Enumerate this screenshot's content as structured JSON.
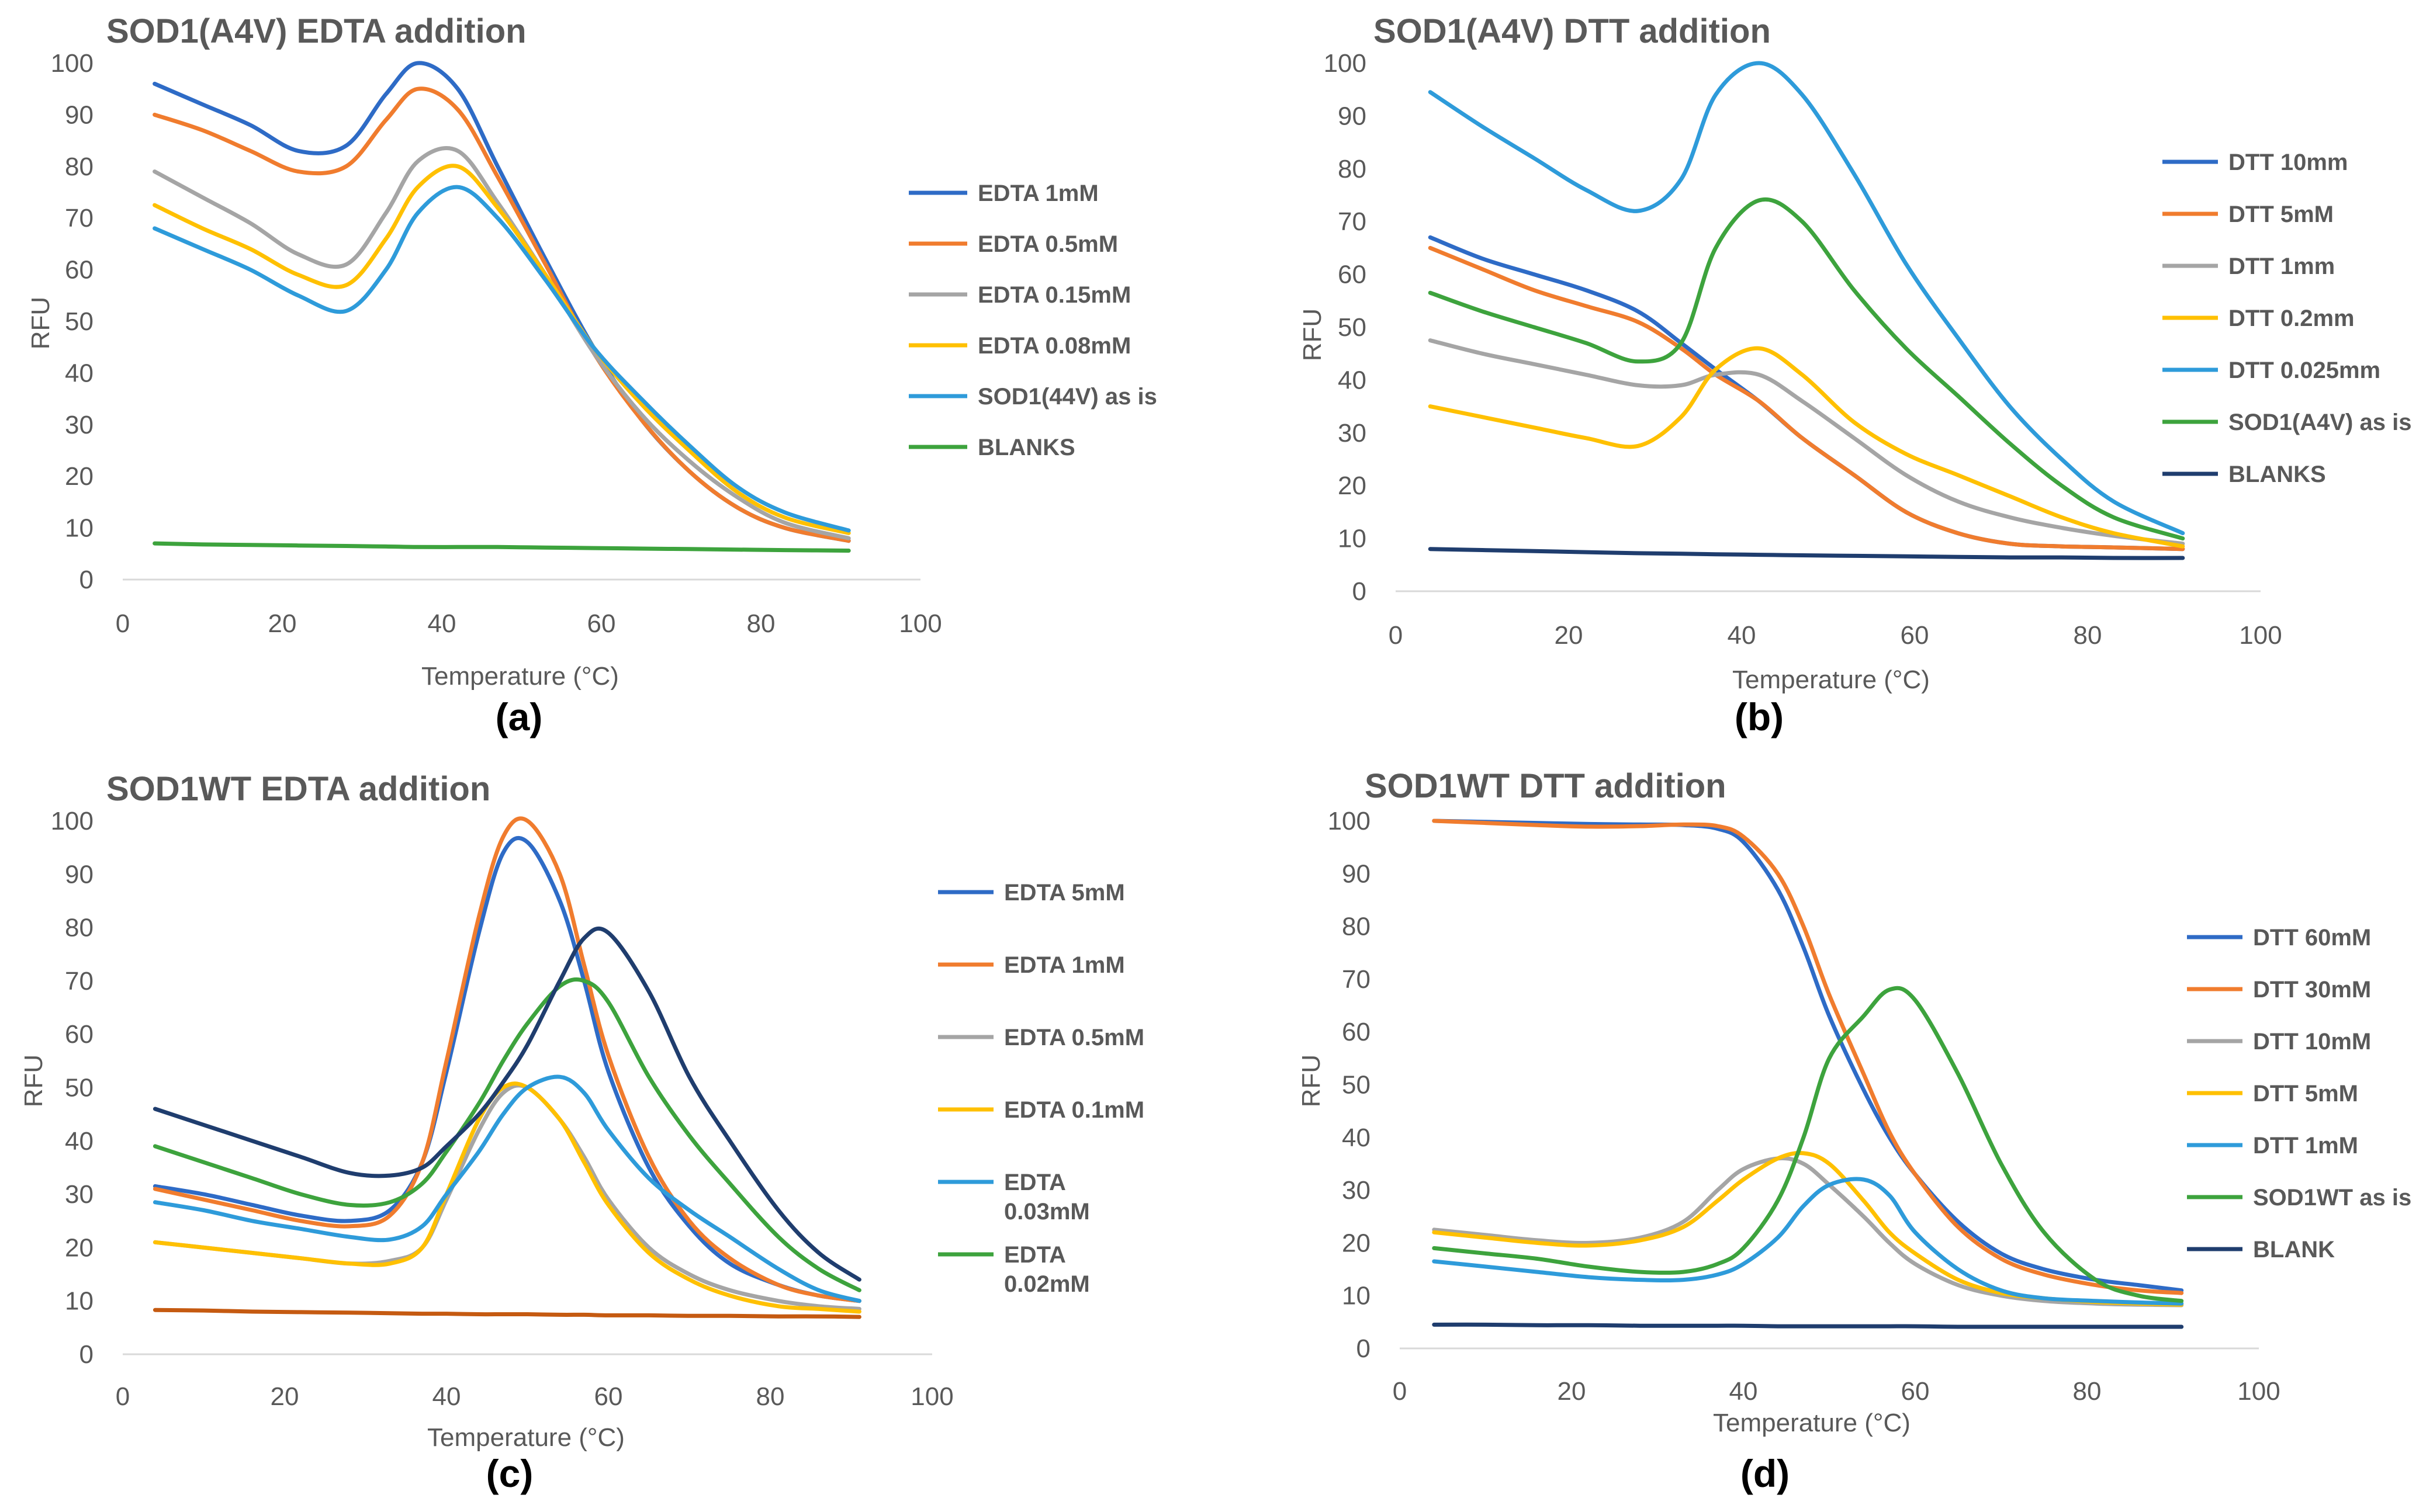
{
  "chart_data": [
    {
      "type": "line",
      "title": "SOD1(A4V) EDTA addition",
      "panel_label": "(a)",
      "xlabel": "Temperature (°C)",
      "ylabel": "RFU",
      "xlim": [
        0,
        100
      ],
      "ylim": [
        0,
        100
      ],
      "xticks": [
        0,
        20,
        40,
        60,
        80,
        100
      ],
      "yticks": [
        0,
        10,
        20,
        30,
        40,
        50,
        60,
        70,
        80,
        90,
        100
      ],
      "legend_position": "right",
      "x": [
        4,
        10,
        16,
        22,
        28,
        33,
        37,
        42,
        47,
        53,
        59,
        65,
        71,
        77,
        83,
        91
      ],
      "series": [
        {
          "name": "EDTA 1mM",
          "color": "#2E6BC6",
          "values": [
            96,
            92,
            88,
            83,
            84,
            94,
            100,
            95,
            80,
            62,
            45,
            31,
            21,
            14,
            10,
            7.5
          ]
        },
        {
          "name": "EDTA 0.5mM",
          "color": "#F07C2E",
          "values": [
            90,
            87,
            83,
            79,
            80,
            89,
            95,
            91,
            78,
            61,
            44,
            31,
            21,
            14,
            10,
            7.5
          ]
        },
        {
          "name": "EDTA 0.15mM",
          "color": "#A5A5A5",
          "values": [
            79,
            74,
            69,
            63,
            61,
            71,
            81,
            83,
            73,
            59,
            44,
            32,
            23,
            16,
            11,
            8
          ]
        },
        {
          "name": "EDTA 0.08mM",
          "color": "#FFC000",
          "values": [
            72.5,
            68,
            64,
            59,
            57,
            66,
            76,
            80,
            72,
            59,
            45,
            34,
            25,
            17,
            12,
            9
          ]
        },
        {
          "name": "SOD1(44V) as is",
          "color": "#2E9BDA",
          "values": [
            68,
            64,
            60,
            55,
            52,
            60,
            71,
            76,
            70,
            58,
            45,
            35,
            26,
            18,
            13,
            9.5
          ]
        },
        {
          "name": "BLANKS",
          "color": "#3DA33D",
          "values": [
            7,
            6.8,
            6.7,
            6.6,
            6.5,
            6.4,
            6.3,
            6.3,
            6.3,
            6.2,
            6.1,
            6.0,
            5.9,
            5.8,
            5.7,
            5.6
          ]
        }
      ]
    },
    {
      "type": "line",
      "title": "SOD1(A4V)  DTT addition",
      "panel_label": "(b)",
      "xlabel": "Temperature  (°C)",
      "ylabel": "RFU",
      "xlim": [
        0,
        100
      ],
      "ylim": [
        0,
        100
      ],
      "xticks": [
        0,
        20,
        40,
        60,
        80,
        100
      ],
      "yticks": [
        0,
        10,
        20,
        30,
        40,
        50,
        60,
        70,
        80,
        90,
        100
      ],
      "legend_position": "right",
      "x": [
        4,
        10,
        16,
        22,
        28,
        33,
        37,
        42,
        47,
        53,
        59,
        65,
        71,
        77,
        83,
        91
      ],
      "series": [
        {
          "name": "DTT 10mm",
          "color": "#2E6BC6",
          "values": [
            67,
            63,
            60,
            57,
            53,
            47,
            42,
            36,
            29,
            22,
            15,
            11,
            9,
            8.5,
            8.3,
            8
          ]
        },
        {
          "name": "DTT 5mM",
          "color": "#F07C2E",
          "values": [
            65,
            61,
            57,
            54,
            51,
            46,
            41,
            36,
            29,
            22,
            15,
            11,
            9,
            8.5,
            8.3,
            8
          ]
        },
        {
          "name": "DTT 1mm",
          "color": "#A5A5A5",
          "values": [
            47.5,
            45,
            43,
            41,
            39,
            39,
            41,
            41,
            36,
            29,
            22,
            17,
            14,
            12,
            10.5,
            9
          ]
        },
        {
          "name": "DTT 0.2mm",
          "color": "#FFC000",
          "values": [
            35,
            33,
            31,
            29,
            27.5,
            33,
            42,
            46,
            41,
            32,
            26,
            22,
            18,
            14,
            11,
            8.5
          ]
        },
        {
          "name": "DTT 0.025mm",
          "color": "#2E9BDA",
          "values": [
            94.5,
            88,
            82,
            76,
            72,
            78,
            94,
            100,
            94,
            79,
            62,
            48,
            35,
            25,
            17,
            11
          ]
        },
        {
          "name": "SOD1(A4V) as is",
          "color": "#3DA33D",
          "values": [
            56.5,
            53,
            50,
            47,
            43.5,
            47,
            65,
            74,
            70,
            57,
            46,
            37,
            28,
            20,
            14,
            10
          ]
        },
        {
          "name": "BLANKS",
          "color": "#1F3D6E",
          "values": [
            8,
            7.8,
            7.6,
            7.4,
            7.2,
            7.1,
            7.0,
            6.9,
            6.8,
            6.7,
            6.6,
            6.5,
            6.4,
            6.4,
            6.3,
            6.3
          ]
        }
      ]
    },
    {
      "type": "line",
      "title": "SOD1WT EDTA addition",
      "panel_label": "(c)",
      "xlabel": "Temperature (°C)",
      "ylabel": "RFU",
      "xlim": [
        0,
        100
      ],
      "ylim": [
        0,
        100
      ],
      "xticks": [
        0,
        20,
        40,
        60,
        80,
        100
      ],
      "yticks": [
        0,
        10,
        20,
        30,
        40,
        50,
        60,
        70,
        80,
        90,
        100
      ],
      "legend_position": "right",
      "x": [
        4,
        10,
        16,
        22,
        28,
        33,
        37,
        40,
        44,
        47,
        50,
        54,
        57,
        60,
        65,
        70,
        75,
        81,
        86,
        91
      ],
      "series": [
        {
          "name": "EDTA 5mM",
          "color": "#2E6BC6",
          "values": [
            31.5,
            30,
            28,
            26,
            25,
            27,
            36,
            53,
            79,
            94,
            96,
            85,
            70,
            53,
            35,
            24,
            17,
            13,
            11,
            10
          ]
        },
        {
          "name": "EDTA 1mM",
          "color": "#F07C2E",
          "values": [
            31,
            29,
            27,
            25,
            24,
            26,
            36,
            55,
            82,
            97,
            100,
            90,
            73,
            56,
            37,
            25,
            18,
            13,
            11,
            10
          ]
        },
        {
          "name": "EDTA 0.5mM",
          "color": "#A5A5A5",
          "values": [
            21,
            20,
            19,
            18,
            17,
            17.5,
            20,
            29,
            42,
            49,
            50,
            44,
            37,
            29,
            20,
            15,
            12,
            10,
            9,
            8.5
          ]
        },
        {
          "name": "EDTA 0.1mM",
          "color": "#FFC000",
          "values": [
            21,
            20,
            19,
            18,
            17,
            17,
            20,
            30,
            44,
            50,
            50,
            44,
            36,
            28,
            19,
            14,
            11,
            9,
            8.5,
            8
          ]
        },
        {
          "name": "EDTA 0.03mM",
          "color": "#2E9BDA",
          "values": [
            28.5,
            27,
            25,
            23.5,
            22,
            21.5,
            24,
            30,
            38,
            45,
            50,
            52,
            49,
            42,
            33,
            27,
            22,
            16,
            12,
            10
          ]
        },
        {
          "name": "EDTA 0.02mM",
          "color": "#3DA33D",
          "values": [
            39,
            36,
            33,
            30,
            28,
            28.5,
            32,
            38,
            47,
            55,
            62,
            69,
            70,
            66,
            52,
            41,
            32,
            22,
            16,
            12
          ]
        },
        {
          "name": "",
          "color": "#1F3D6E",
          "values": [
            46,
            43,
            40,
            37,
            34,
            33.5,
            35,
            39,
            45,
            51,
            58,
            70,
            78,
            79,
            68,
            52,
            40,
            27,
            19,
            14
          ]
        },
        {
          "name": "",
          "color": "#C55A11",
          "values": [
            8.3,
            8.2,
            8.0,
            7.9,
            7.8,
            7.7,
            7.6,
            7.6,
            7.5,
            7.5,
            7.5,
            7.4,
            7.4,
            7.3,
            7.3,
            7.2,
            7.2,
            7.1,
            7.1,
            7.0
          ]
        }
      ]
    },
    {
      "type": "line",
      "title": "SOD1WT DTT addition",
      "panel_label": "(d)",
      "xlabel": "Temperature (°C)",
      "ylabel": "RFU",
      "xlim": [
        0,
        100
      ],
      "ylim": [
        0,
        100
      ],
      "xticks": [
        0,
        20,
        40,
        60,
        80,
        100
      ],
      "yticks": [
        0,
        10,
        20,
        30,
        40,
        50,
        60,
        70,
        80,
        90,
        100
      ],
      "legend_position": "right",
      "x": [
        4,
        10,
        16,
        22,
        28,
        33,
        37,
        40,
        44,
        47,
        50,
        54,
        57,
        60,
        65,
        70,
        75,
        81,
        86,
        91
      ],
      "series": [
        {
          "name": "DTT 60mM",
          "color": "#2E6BC6",
          "values": [
            100,
            99.8,
            99.6,
            99.4,
            99.3,
            99.2,
            98.5,
            96,
            87,
            76,
            63,
            49,
            40,
            33,
            24,
            18,
            15,
            13,
            12,
            11
          ]
        },
        {
          "name": "DTT 30mM",
          "color": "#F07C2E",
          "values": [
            100,
            99.6,
            99.2,
            98.9,
            99,
            99.3,
            99,
            97,
            90,
            80,
            67,
            52,
            41,
            33,
            23,
            17,
            14,
            12,
            11,
            10.5
          ]
        },
        {
          "name": "DTT 10mM",
          "color": "#A5A5A5",
          "values": [
            22.5,
            21.5,
            20.5,
            20,
            21,
            24,
            30,
            34,
            36,
            35,
            31,
            25,
            20,
            16,
            12,
            10,
            9,
            8.5,
            8.3,
            8.2
          ]
        },
        {
          "name": "DTT 5mM",
          "color": "#FFC000",
          "values": [
            22,
            21,
            20,
            19.5,
            20.5,
            23,
            28,
            32,
            36,
            37,
            35,
            28,
            22,
            18,
            13,
            10.5,
            9.5,
            8.8,
            8.5,
            8.3
          ]
        },
        {
          "name": "DTT 1mM",
          "color": "#2E9BDA",
          "values": [
            16.5,
            15.5,
            14.5,
            13.5,
            13,
            13,
            14,
            16,
            21,
            27,
            31,
            32,
            29,
            22,
            15,
            11,
            9.5,
            9,
            8.7,
            8.5
          ]
        },
        {
          "name": "SOD1WT as is",
          "color": "#3DA33D",
          "values": [
            19,
            18,
            17,
            15.5,
            14.5,
            14.5,
            16,
            19,
            28,
            40,
            55,
            63,
            68,
            66,
            52,
            35,
            22,
            13,
            10,
            9
          ]
        },
        {
          "name": "BLANK",
          "color": "#1F3D6E",
          "values": [
            4.5,
            4.5,
            4.4,
            4.4,
            4.3,
            4.3,
            4.3,
            4.3,
            4.2,
            4.2,
            4.2,
            4.2,
            4.2,
            4.2,
            4.1,
            4.1,
            4.1,
            4.1,
            4.1,
            4.1
          ]
        }
      ]
    }
  ]
}
